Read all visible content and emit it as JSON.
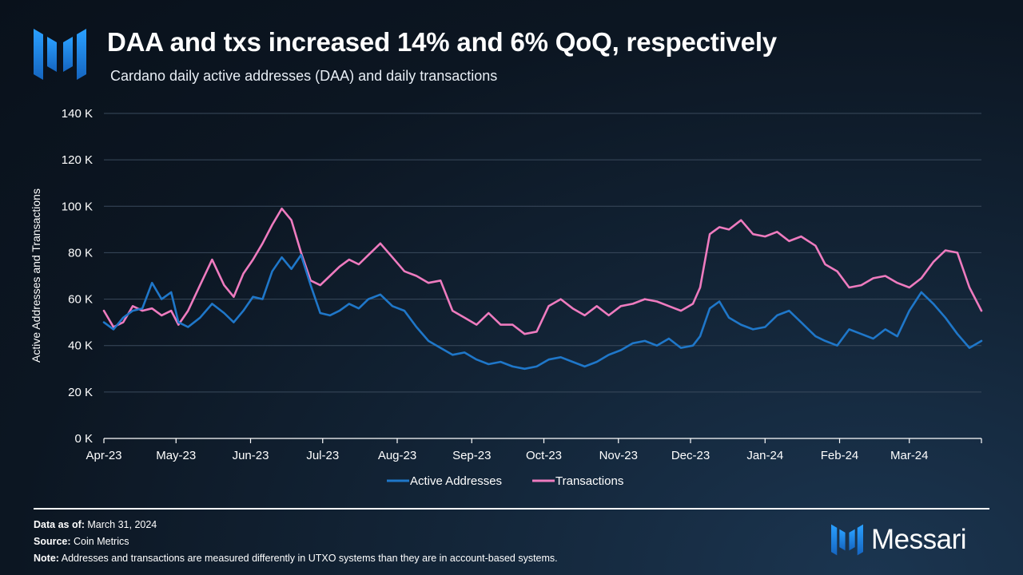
{
  "header": {
    "title": "DAA and txs increased 14% and 6% QoQ, respectively",
    "subtitle": "Cardano daily active addresses (DAA) and daily transactions"
  },
  "colors": {
    "active_addresses": "#1f77c9",
    "transactions": "#ee7bbf",
    "grid": "#3a4a5c",
    "axis": "#ffffff",
    "brand_blue": "#1e88e5"
  },
  "chart_data": {
    "type": "line",
    "title": "DAA and txs increased 14% and 6% QoQ, respectively",
    "ylabel": "Active Addresses and Transactions",
    "xlabel": "",
    "ylim": [
      0,
      140000
    ],
    "yticks": [
      0,
      20000,
      40000,
      60000,
      80000,
      100000,
      120000,
      140000
    ],
    "ytick_labels": [
      "0 K",
      "20 K",
      "40 K",
      "60 K",
      "80 K",
      "100 K",
      "120 K",
      "140 K"
    ],
    "xlim": [
      0,
      365
    ],
    "xticks": [
      0,
      30,
      61,
      91,
      122,
      153,
      183,
      214,
      244,
      275,
      306,
      335
    ],
    "xtick_labels": [
      "Apr-23",
      "May-23",
      "Jun-23",
      "Jul-23",
      "Aug-23",
      "Sep-23",
      "Oct-23",
      "Nov-23",
      "Dec-23",
      "Jan-24",
      "Feb-24",
      "Mar-24"
    ],
    "grid": true,
    "legend_position": "bottom-center",
    "series": [
      {
        "name": "Active Addresses",
        "color": "#1f77c9",
        "x": [
          0,
          4,
          8,
          12,
          16,
          20,
          24,
          28,
          31,
          35,
          40,
          45,
          50,
          54,
          58,
          62,
          66,
          70,
          74,
          78,
          82,
          86,
          90,
          94,
          98,
          102,
          106,
          110,
          115,
          120,
          125,
          130,
          135,
          140,
          145,
          150,
          155,
          160,
          165,
          170,
          175,
          180,
          185,
          190,
          195,
          200,
          205,
          210,
          215,
          220,
          225,
          230,
          235,
          240,
          245,
          248,
          252,
          256,
          260,
          265,
          270,
          275,
          280,
          285,
          290,
          296,
          300,
          305,
          310,
          315,
          320,
          325,
          330,
          335,
          340,
          345,
          350,
          355,
          360,
          365
        ],
        "values": [
          50000,
          47000,
          52000,
          55000,
          56000,
          67000,
          60000,
          63000,
          50000,
          48000,
          52000,
          58000,
          54000,
          50000,
          55000,
          61000,
          60000,
          72000,
          78000,
          73000,
          79000,
          66000,
          54000,
          53000,
          55000,
          58000,
          56000,
          60000,
          62000,
          57000,
          55000,
          48000,
          42000,
          39000,
          36000,
          37000,
          34000,
          32000,
          33000,
          31000,
          30000,
          31000,
          34000,
          35000,
          33000,
          31000,
          33000,
          36000,
          38000,
          41000,
          42000,
          40000,
          43000,
          39000,
          40000,
          44000,
          56000,
          59000,
          52000,
          49000,
          47000,
          48000,
          53000,
          55000,
          50000,
          44000,
          42000,
          40000,
          47000,
          45000,
          43000,
          47000,
          44000,
          55000,
          63000,
          58000,
          52000,
          45000,
          39000,
          42000
        ]
      },
      {
        "name": "Transactions",
        "color": "#ee7bbf",
        "x": [
          0,
          4,
          8,
          12,
          16,
          20,
          24,
          28,
          31,
          35,
          40,
          45,
          50,
          54,
          58,
          62,
          66,
          70,
          74,
          78,
          82,
          86,
          90,
          94,
          98,
          102,
          106,
          110,
          115,
          120,
          125,
          130,
          135,
          140,
          145,
          150,
          155,
          160,
          165,
          170,
          175,
          180,
          185,
          190,
          195,
          200,
          205,
          210,
          215,
          220,
          225,
          230,
          235,
          240,
          245,
          248,
          252,
          256,
          260,
          265,
          270,
          275,
          280,
          285,
          290,
          296,
          300,
          305,
          310,
          315,
          320,
          325,
          330,
          335,
          340,
          345,
          350,
          355,
          360,
          365
        ],
        "values": [
          55000,
          48000,
          50000,
          57000,
          55000,
          56000,
          53000,
          55000,
          49000,
          55000,
          66000,
          77000,
          66000,
          61000,
          71000,
          77000,
          84000,
          92000,
          99000,
          94000,
          80000,
          68000,
          66000,
          70000,
          74000,
          77000,
          75000,
          79000,
          84000,
          78000,
          72000,
          70000,
          67000,
          68000,
          55000,
          52000,
          49000,
          54000,
          49000,
          49000,
          45000,
          46000,
          57000,
          60000,
          56000,
          53000,
          57000,
          53000,
          57000,
          58000,
          60000,
          59000,
          57000,
          55000,
          58000,
          65000,
          88000,
          91000,
          90000,
          94000,
          88000,
          87000,
          89000,
          85000,
          87000,
          83000,
          75000,
          72000,
          65000,
          66000,
          69000,
          70000,
          67000,
          65000,
          69000,
          76000,
          81000,
          80000,
          65000,
          55000
        ]
      }
    ]
  },
  "footer": {
    "data_as_of_label": "Data as of:",
    "data_as_of_value": "March 31, 2024",
    "source_label": "Source:",
    "source_value": "Coin Metrics",
    "note_label": "Note:",
    "note_value": "Addresses and transactions are measured differently in UTXO systems than they are in account-based systems."
  },
  "brand": {
    "logo_icon": "messari-logo-icon",
    "name": "Messari"
  }
}
